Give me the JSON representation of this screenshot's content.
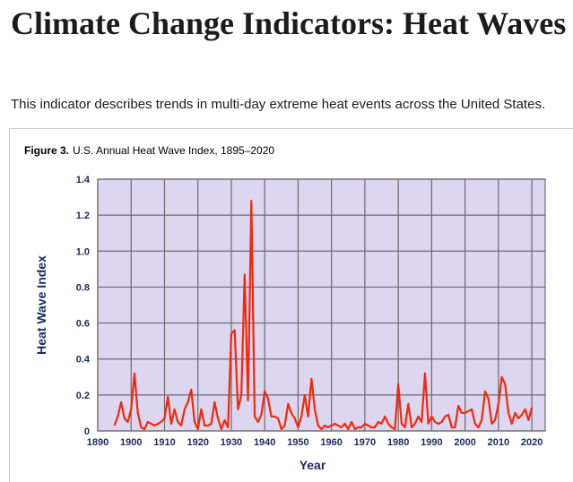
{
  "header": {
    "title": "Climate Change Indicators: Heat Waves",
    "description": "This indicator describes trends in multi-day extreme heat events across the United States."
  },
  "figure_label": "Figure 3.",
  "chart_data": {
    "type": "line",
    "title": "U.S. Annual Heat Wave Index, 1895–2020",
    "xlabel": "Year",
    "ylabel": "Heat Wave Index",
    "x": [
      1895,
      1896,
      1897,
      1898,
      1899,
      1900,
      1901,
      1902,
      1903,
      1904,
      1905,
      1906,
      1907,
      1908,
      1909,
      1910,
      1911,
      1912,
      1913,
      1914,
      1915,
      1916,
      1917,
      1918,
      1919,
      1920,
      1921,
      1922,
      1923,
      1924,
      1925,
      1926,
      1927,
      1928,
      1929,
      1930,
      1931,
      1932,
      1933,
      1934,
      1935,
      1936,
      1937,
      1938,
      1939,
      1940,
      1941,
      1942,
      1943,
      1944,
      1945,
      1946,
      1947,
      1948,
      1949,
      1950,
      1951,
      1952,
      1953,
      1954,
      1955,
      1956,
      1957,
      1958,
      1959,
      1960,
      1961,
      1962,
      1963,
      1964,
      1965,
      1966,
      1967,
      1968,
      1969,
      1970,
      1971,
      1972,
      1973,
      1974,
      1975,
      1976,
      1977,
      1978,
      1979,
      1980,
      1981,
      1982,
      1983,
      1984,
      1985,
      1986,
      1987,
      1988,
      1989,
      1990,
      1991,
      1992,
      1993,
      1994,
      1995,
      1996,
      1997,
      1998,
      1999,
      2000,
      2001,
      2002,
      2003,
      2004,
      2005,
      2006,
      2007,
      2008,
      2009,
      2010,
      2011,
      2012,
      2013,
      2014,
      2015,
      2016,
      2017,
      2018,
      2019,
      2020
    ],
    "series": [
      {
        "name": "Heat Wave Index",
        "color": "#f02a0a",
        "values": [
          0.03,
          0.08,
          0.16,
          0.07,
          0.05,
          0.12,
          0.32,
          0.1,
          0.02,
          0.01,
          0.05,
          0.04,
          0.03,
          0.04,
          0.05,
          0.07,
          0.19,
          0.04,
          0.12,
          0.05,
          0.03,
          0.12,
          0.16,
          0.23,
          0.05,
          0.01,
          0.12,
          0.03,
          0.03,
          0.04,
          0.16,
          0.07,
          0.01,
          0.06,
          0.02,
          0.54,
          0.56,
          0.12,
          0.2,
          0.87,
          0.17,
          1.28,
          0.08,
          0.05,
          0.09,
          0.22,
          0.18,
          0.08,
          0.08,
          0.07,
          0.01,
          0.03,
          0.15,
          0.1,
          0.07,
          0.02,
          0.08,
          0.2,
          0.08,
          0.29,
          0.12,
          0.03,
          0.01,
          0.03,
          0.02,
          0.03,
          0.04,
          0.03,
          0.02,
          0.04,
          0.01,
          0.05,
          0.01,
          0.02,
          0.02,
          0.04,
          0.03,
          0.02,
          0.02,
          0.05,
          0.04,
          0.08,
          0.04,
          0.02,
          0.01,
          0.26,
          0.04,
          0.02,
          0.15,
          0.02,
          0.04,
          0.08,
          0.05,
          0.32,
          0.04,
          0.08,
          0.05,
          0.04,
          0.05,
          0.08,
          0.09,
          0.02,
          0.02,
          0.14,
          0.1,
          0.1,
          0.11,
          0.12,
          0.04,
          0.02,
          0.06,
          0.22,
          0.18,
          0.04,
          0.06,
          0.15,
          0.3,
          0.26,
          0.1,
          0.04,
          0.1,
          0.07,
          0.09,
          0.12,
          0.06,
          0.13
        ]
      }
    ],
    "xlim": [
      1890,
      2024
    ],
    "xticks": [
      1890,
      1900,
      1910,
      1920,
      1930,
      1940,
      1950,
      1960,
      1970,
      1980,
      1990,
      2000,
      2010,
      2020
    ],
    "ylim": [
      0,
      1.4
    ],
    "yticks": [
      0,
      0.2,
      0.4,
      0.6,
      0.8,
      {
        "value": 1,
        "label": "1.0"
      },
      1.2,
      1.4
    ],
    "grid": true,
    "plot_background": "#ddd6f1"
  }
}
